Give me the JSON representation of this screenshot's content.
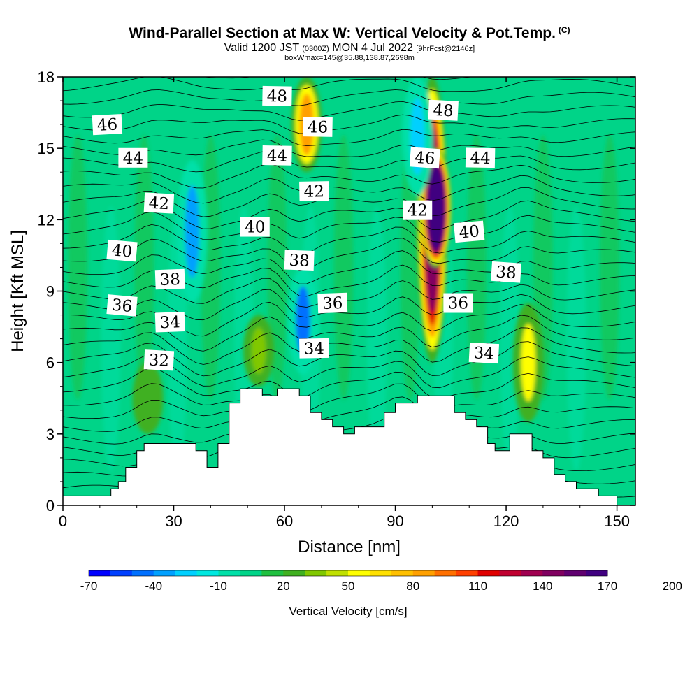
{
  "title": "Wind-Parallel Section at Max W: Vertical Velocity & Pot.Temp.",
  "copyright": "(C)",
  "subtitle_main": "Valid 1200 JST",
  "subtitle_utc": "(0300Z)",
  "subtitle_date": "MON 4 Jul 2022",
  "subtitle_fcst": "[9hrFcst@2146z]",
  "subsubtitle": "boxWmax=145@35.88,138.87,2698m",
  "chart_data": {
    "type": "heatmap",
    "xlabel": "Distance [nm]",
    "ylabel": "Height [Kft MSL]",
    "xlim": [
      0,
      155
    ],
    "ylim": [
      0,
      18
    ],
    "xticks": [
      0,
      30,
      60,
      90,
      120,
      150
    ],
    "yticks": [
      0,
      3,
      6,
      9,
      12,
      15,
      18
    ],
    "colorbar": {
      "label": "Vertical Velocity [cm/s]",
      "tick_labels": [
        "-70",
        "-40",
        "-10",
        "20",
        "50",
        "80",
        "110",
        "140",
        "170",
        "200"
      ],
      "tick_values": [
        -70,
        -40,
        -10,
        20,
        50,
        80,
        110,
        140,
        170,
        200
      ],
      "bin_width": 10,
      "colors": [
        "#0000ff",
        "#0040ff",
        "#0070ff",
        "#00a0ff",
        "#00d0ff",
        "#00e8e0",
        "#00e0a8",
        "#00d488",
        "#20c040",
        "#40b020",
        "#80c800",
        "#c0e000",
        "#ffff00",
        "#ffe000",
        "#ffc000",
        "#ffa000",
        "#ff7000",
        "#ff4000",
        "#e00000",
        "#c00030",
        "#a00050",
        "#800060",
        "#600070",
        "#400080"
      ]
    },
    "terrain": [
      [
        0,
        0.4
      ],
      [
        13,
        0.4
      ],
      [
        13,
        0.7
      ],
      [
        15,
        0.7
      ],
      [
        15,
        1.0
      ],
      [
        17,
        1.0
      ],
      [
        17,
        1.6
      ],
      [
        20,
        1.6
      ],
      [
        20,
        2.3
      ],
      [
        22,
        2.3
      ],
      [
        22,
        2.6
      ],
      [
        36,
        2.6
      ],
      [
        36,
        2.3
      ],
      [
        39,
        2.3
      ],
      [
        39,
        1.6
      ],
      [
        42,
        1.6
      ],
      [
        42,
        2.6
      ],
      [
        45,
        2.6
      ],
      [
        45,
        4.3
      ],
      [
        48,
        4.3
      ],
      [
        48,
        4.9
      ],
      [
        54,
        4.9
      ],
      [
        54,
        4.6
      ],
      [
        58,
        4.6
      ],
      [
        58,
        4.9
      ],
      [
        64,
        4.9
      ],
      [
        64,
        4.6
      ],
      [
        67,
        4.6
      ],
      [
        67,
        3.9
      ],
      [
        70,
        3.9
      ],
      [
        70,
        3.6
      ],
      [
        73,
        3.6
      ],
      [
        73,
        3.3
      ],
      [
        76,
        3.3
      ],
      [
        76,
        3.0
      ],
      [
        79,
        3.0
      ],
      [
        79,
        3.3
      ],
      [
        87,
        3.3
      ],
      [
        87,
        3.9
      ],
      [
        90,
        3.9
      ],
      [
        90,
        4.3
      ],
      [
        96,
        4.3
      ],
      [
        96,
        4.6
      ],
      [
        106,
        4.6
      ],
      [
        106,
        3.9
      ],
      [
        109,
        3.9
      ],
      [
        109,
        3.6
      ],
      [
        112,
        3.6
      ],
      [
        112,
        3.3
      ],
      [
        115,
        3.3
      ],
      [
        115,
        2.6
      ],
      [
        117,
        2.6
      ],
      [
        117,
        2.3
      ],
      [
        121,
        2.3
      ],
      [
        121,
        3.0
      ],
      [
        127,
        3.0
      ],
      [
        127,
        2.3
      ],
      [
        130,
        2.3
      ],
      [
        130,
        2.0
      ],
      [
        133,
        2.0
      ],
      [
        133,
        1.3
      ],
      [
        136,
        1.3
      ],
      [
        136,
        1.0
      ],
      [
        139,
        1.0
      ],
      [
        139,
        0.7
      ],
      [
        145,
        0.7
      ],
      [
        145,
        0.4
      ],
      [
        150,
        0.4
      ],
      [
        150,
        0
      ]
    ],
    "vertical_velocity_features": [
      {
        "x": 35,
        "y_range": [
          8.5,
          14.5
        ],
        "w_cm_s": -40
      },
      {
        "x": 65,
        "y_range": [
          5.5,
          10
        ],
        "w_cm_s": -50
      },
      {
        "x": 66,
        "y_range": [
          14,
          18
        ],
        "w_cm_s": 80
      },
      {
        "x": 100,
        "y_range": [
          6,
          18
        ],
        "w_cm_s": 140
      },
      {
        "x": 101,
        "y_range": [
          10,
          15
        ],
        "w_cm_s": 200
      },
      {
        "x": 96,
        "y_range": [
          13,
          18
        ],
        "w_cm_s": -30
      },
      {
        "x": 126,
        "y_range": [
          3.5,
          8.5
        ],
        "w_cm_s": 50
      },
      {
        "x": 53,
        "y_range": [
          5,
          8
        ],
        "w_cm_s": 30
      },
      {
        "x": 23,
        "y_range": [
          3,
          6
        ],
        "w_cm_s": 20
      }
    ],
    "potential_temperature_contour_labels": [
      {
        "value": "48",
        "x": 58,
        "y": 17.2
      },
      {
        "value": "48",
        "x": 103,
        "y": 16.6
      },
      {
        "value": "46",
        "x": 12,
        "y": 16.0
      },
      {
        "value": "46",
        "x": 69,
        "y": 15.9
      },
      {
        "value": "46",
        "x": 98,
        "y": 14.6
      },
      {
        "value": "44",
        "x": 19,
        "y": 14.6
      },
      {
        "value": "44",
        "x": 58,
        "y": 14.7
      },
      {
        "value": "44",
        "x": 113,
        "y": 14.6
      },
      {
        "value": "42",
        "x": 26,
        "y": 12.7
      },
      {
        "value": "42",
        "x": 68,
        "y": 13.2
      },
      {
        "value": "42",
        "x": 96,
        "y": 12.4
      },
      {
        "value": "40",
        "x": 52,
        "y": 11.7
      },
      {
        "value": "40",
        "x": 110,
        "y": 11.5
      },
      {
        "value": "40",
        "x": 16,
        "y": 10.7
      },
      {
        "value": "38",
        "x": 64,
        "y": 10.3
      },
      {
        "value": "38",
        "x": 29,
        "y": 9.5
      },
      {
        "value": "38",
        "x": 120,
        "y": 9.8
      },
      {
        "value": "36",
        "x": 16,
        "y": 8.4
      },
      {
        "value": "36",
        "x": 73,
        "y": 8.5
      },
      {
        "value": "36",
        "x": 107,
        "y": 8.5
      },
      {
        "value": "34",
        "x": 29,
        "y": 7.7
      },
      {
        "value": "34",
        "x": 68,
        "y": 6.6
      },
      {
        "value": "34",
        "x": 114,
        "y": 6.4
      },
      {
        "value": "32",
        "x": 26,
        "y": 6.1
      }
    ]
  }
}
